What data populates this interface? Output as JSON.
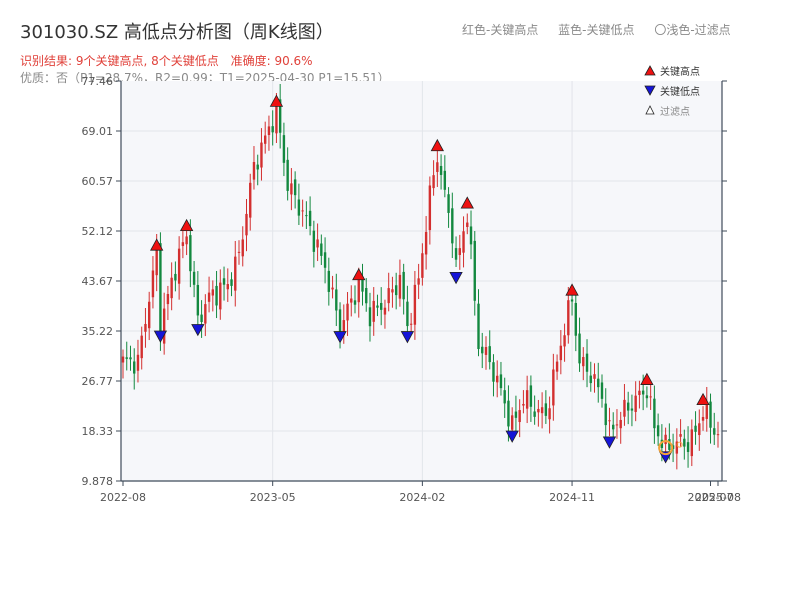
{
  "header": {
    "title": "301030.SZ 高低点分析图（周K线图）",
    "result_label": "识别结果: 9个关键高点, 8个关键低点",
    "accuracy_label": "准确度: 90.6%",
    "quality_line": "优质：否（P1=28.7%，R2=0.99；T1=2025-04-30 P1=15.51）"
  },
  "top_legend": {
    "red": "红色-关键高点",
    "blue": "蓝色-关键低点",
    "light": "〇浅色-过滤点"
  },
  "colors": {
    "up": "#d32f2f",
    "down": "#13883f",
    "high_marker": "#ee1111",
    "low_marker": "#1515d8",
    "filtered_marker": "#f2a33a",
    "plot_bg": "#f6f7fa",
    "grid": "#e2e5ea",
    "axis": "#3f4b5a"
  },
  "chart_data": {
    "type": "candlestick",
    "x_ticks": [
      "2022-08",
      "2023-05",
      "2024-02",
      "2024-11",
      "2025-07",
      "2025-08"
    ],
    "y_ticks": [
      "9.878",
      "18.33",
      "26.77",
      "35.22",
      "43.67",
      "52.12",
      "60.57",
      "69.01",
      "77.46"
    ],
    "ylim": [
      9.878,
      77.46
    ],
    "legend": {
      "high": "关键高点",
      "low": "关键低点",
      "filtered": "过滤点",
      "position": "top-right"
    },
    "key_highs": [
      {
        "week": 9,
        "price": 48.2
      },
      {
        "week": 17,
        "price": 51.5
      },
      {
        "week": 41,
        "price": 72.5
      },
      {
        "week": 63,
        "price": 43.2
      },
      {
        "week": 84,
        "price": 65.0
      },
      {
        "week": 92,
        "price": 55.3
      },
      {
        "week": 120,
        "price": 40.6
      },
      {
        "week": 140,
        "price": 25.5
      },
      {
        "week": 155,
        "price": 22.1
      }
    ],
    "key_lows": [
      {
        "week": 10,
        "price": 35.9
      },
      {
        "week": 20,
        "price": 37.0
      },
      {
        "week": 58,
        "price": 35.8
      },
      {
        "week": 76,
        "price": 35.8
      },
      {
        "week": 89,
        "price": 45.8
      },
      {
        "week": 104,
        "price": 19.0
      },
      {
        "week": 130,
        "price": 18.0
      },
      {
        "week": 145,
        "price": 15.5
      }
    ],
    "filtered": [
      {
        "week": 145,
        "price": 15.51
      }
    ],
    "segments": [
      [
        0,
        30.0
      ],
      [
        4,
        30.0
      ],
      [
        9,
        48.2
      ],
      [
        10,
        35.9
      ],
      [
        14,
        46.0
      ],
      [
        17,
        51.5
      ],
      [
        20,
        37.0
      ],
      [
        23,
        41.0
      ],
      [
        28,
        43.0
      ],
      [
        31,
        48.0
      ],
      [
        35,
        63.0
      ],
      [
        41,
        72.5
      ],
      [
        44,
        60.0
      ],
      [
        49,
        54.0
      ],
      [
        54,
        46.0
      ],
      [
        58,
        35.8
      ],
      [
        63,
        43.2
      ],
      [
        66,
        38.0
      ],
      [
        70,
        40.0
      ],
      [
        74,
        44.0
      ],
      [
        76,
        35.8
      ],
      [
        79,
        44.0
      ],
      [
        82,
        58.0
      ],
      [
        84,
        65.0
      ],
      [
        86,
        58.0
      ],
      [
        88,
        52.0
      ],
      [
        89,
        45.8
      ],
      [
        92,
        55.3
      ],
      [
        95,
        33.0
      ],
      [
        98,
        30.0
      ],
      [
        101,
        25.0
      ],
      [
        104,
        19.0
      ],
      [
        107,
        24.0
      ],
      [
        110,
        22.0
      ],
      [
        113,
        21.0
      ],
      [
        116,
        30.0
      ],
      [
        118,
        36.0
      ],
      [
        120,
        40.6
      ],
      [
        122,
        30.0
      ],
      [
        125,
        28.0
      ],
      [
        128,
        24.0
      ],
      [
        130,
        18.0
      ],
      [
        133,
        21.0
      ],
      [
        136,
        23.0
      ],
      [
        140,
        25.5
      ],
      [
        142,
        19.0
      ],
      [
        145,
        15.5
      ],
      [
        148,
        16.5
      ],
      [
        151,
        16.2
      ],
      [
        153,
        18.0
      ],
      [
        155,
        22.1
      ],
      [
        158,
        18.3
      ],
      [
        159,
        18.3
      ]
    ]
  }
}
